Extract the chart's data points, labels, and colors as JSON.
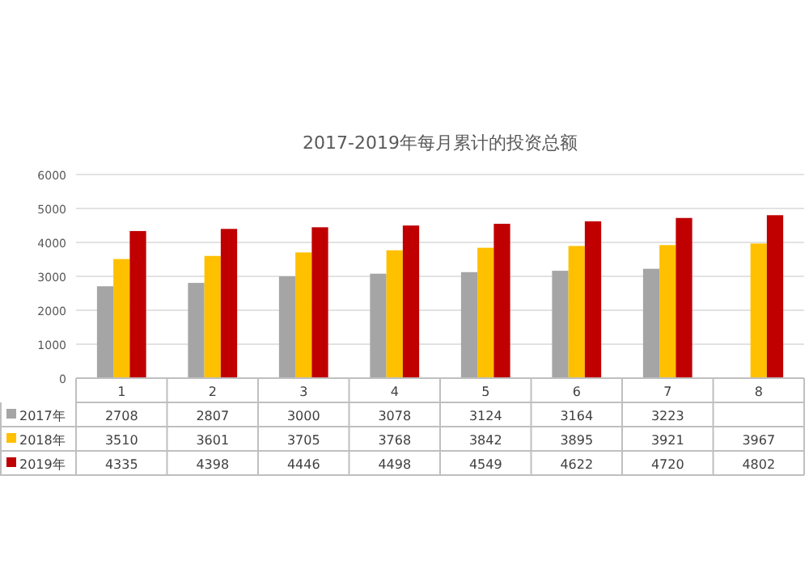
{
  "chart_data": {
    "type": "bar",
    "title": "2017-2019年每月累计的投资总额",
    "categories": [
      "1",
      "2",
      "3",
      "4",
      "5",
      "6",
      "7",
      "8"
    ],
    "series": [
      {
        "name": "2017年",
        "color": "#a5a5a5",
        "values": [
          2708,
          2807,
          3000,
          3078,
          3124,
          3164,
          3223,
          null
        ]
      },
      {
        "name": "2018年",
        "color": "#ffc000",
        "values": [
          3510,
          3601,
          3705,
          3768,
          3842,
          3895,
          3921,
          3967
        ]
      },
      {
        "name": "2019年",
        "color": "#c00000",
        "values": [
          4335,
          4398,
          4446,
          4498,
          4549,
          4622,
          4720,
          4802
        ]
      }
    ],
    "ylim": [
      0,
      6000
    ],
    "yticks": [
      0,
      1000,
      2000,
      3000,
      4000,
      5000,
      6000
    ],
    "grid": "y",
    "legend": "bottom",
    "data_labels": true
  }
}
